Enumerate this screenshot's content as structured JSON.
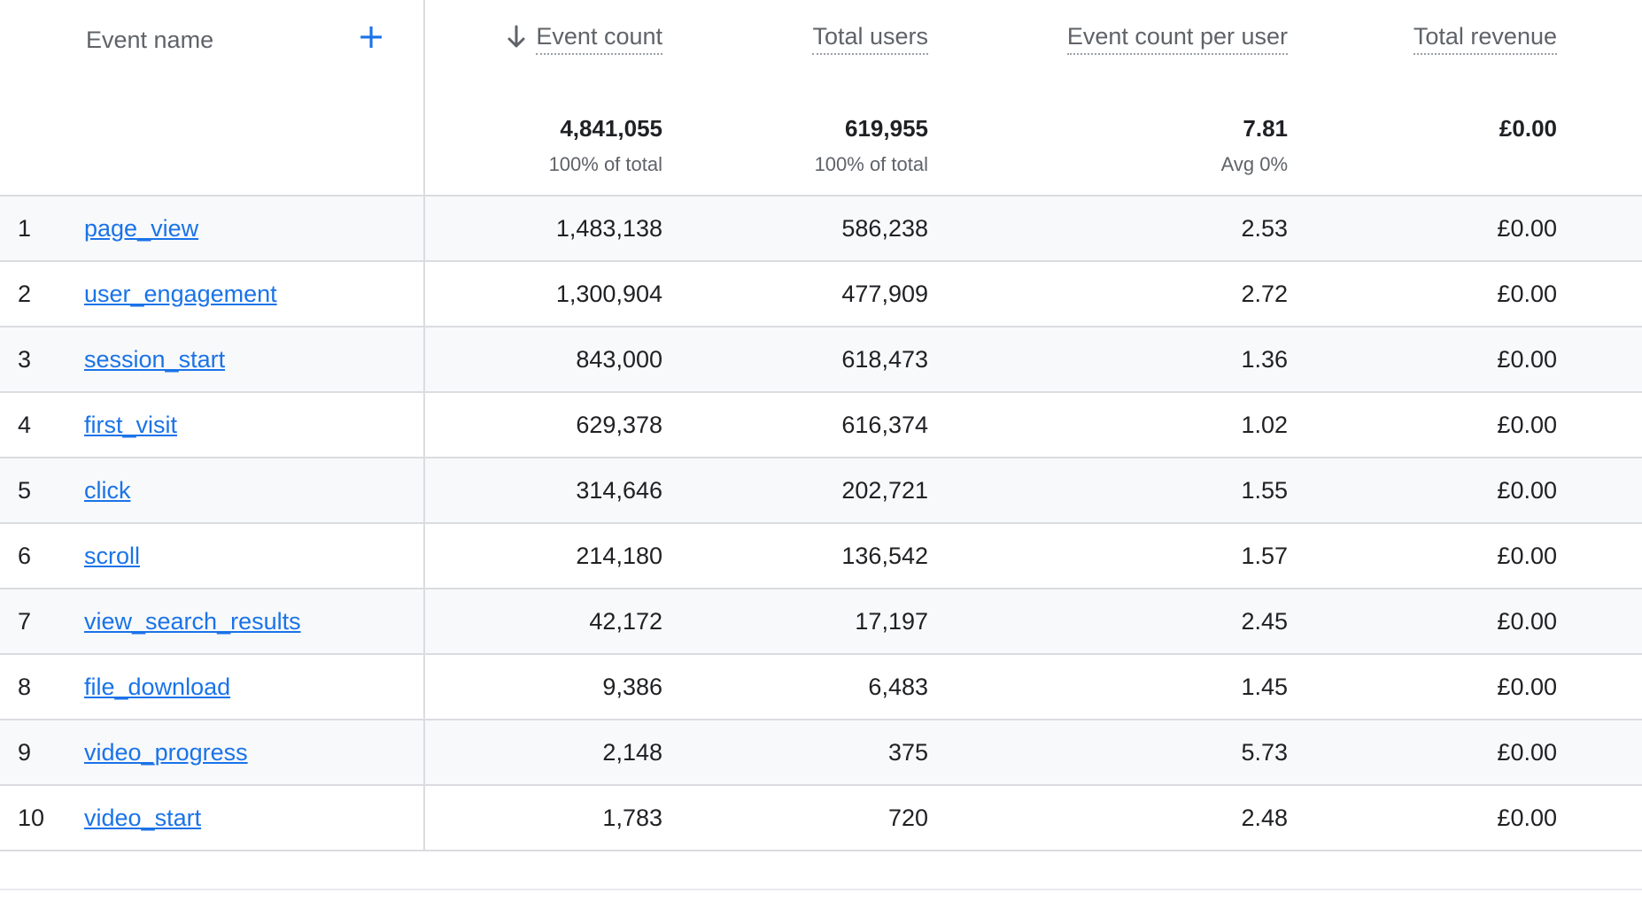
{
  "headers": {
    "event_name": "Event name",
    "add_icon": "plus-icon",
    "sort_icon": "arrow-down-icon",
    "event_count": "Event count",
    "total_users": "Total users",
    "event_count_per_user": "Event count per user",
    "total_revenue": "Total revenue"
  },
  "totals": {
    "event_count": "4,841,055",
    "event_count_sub": "100% of total",
    "total_users": "619,955",
    "total_users_sub": "100% of total",
    "event_count_per_user": "7.81",
    "event_count_per_user_sub": "Avg 0%",
    "total_revenue": "£0.00"
  },
  "colors": {
    "link": "#1a73e8",
    "row_alt": "#f8f9fa",
    "border": "#dadce0"
  },
  "rows": [
    {
      "idx": "1",
      "name": "page_view",
      "event_count": "1,483,138",
      "total_users": "586,238",
      "per_user": "2.53",
      "revenue": "£0.00"
    },
    {
      "idx": "2",
      "name": "user_engagement",
      "event_count": "1,300,904",
      "total_users": "477,909",
      "per_user": "2.72",
      "revenue": "£0.00"
    },
    {
      "idx": "3",
      "name": "session_start",
      "event_count": "843,000",
      "total_users": "618,473",
      "per_user": "1.36",
      "revenue": "£0.00"
    },
    {
      "idx": "4",
      "name": "first_visit",
      "event_count": "629,378",
      "total_users": "616,374",
      "per_user": "1.02",
      "revenue": "£0.00"
    },
    {
      "idx": "5",
      "name": "click",
      "event_count": "314,646",
      "total_users": "202,721",
      "per_user": "1.55",
      "revenue": "£0.00"
    },
    {
      "idx": "6",
      "name": "scroll",
      "event_count": "214,180",
      "total_users": "136,542",
      "per_user": "1.57",
      "revenue": "£0.00"
    },
    {
      "idx": "7",
      "name": "view_search_results",
      "event_count": "42,172",
      "total_users": "17,197",
      "per_user": "2.45",
      "revenue": "£0.00"
    },
    {
      "idx": "8",
      "name": "file_download",
      "event_count": "9,386",
      "total_users": "6,483",
      "per_user": "1.45",
      "revenue": "£0.00"
    },
    {
      "idx": "9",
      "name": "video_progress",
      "event_count": "2,148",
      "total_users": "375",
      "per_user": "5.73",
      "revenue": "£0.00"
    },
    {
      "idx": "10",
      "name": "video_start",
      "event_count": "1,783",
      "total_users": "720",
      "per_user": "2.48",
      "revenue": "£0.00"
    }
  ]
}
